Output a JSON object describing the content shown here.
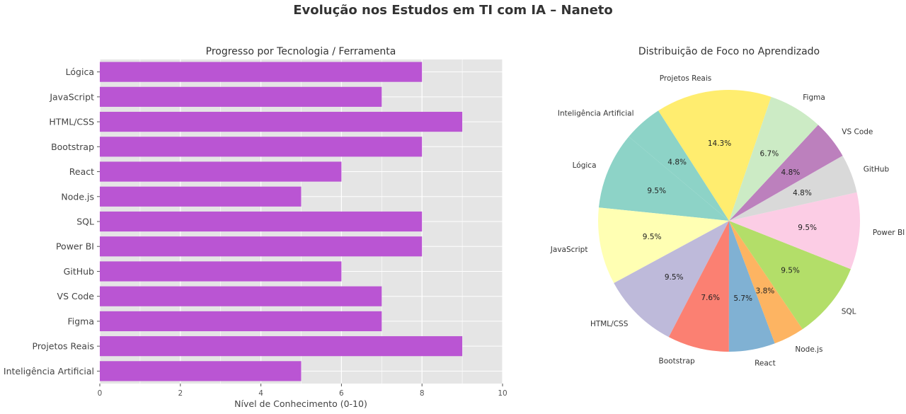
{
  "suptitle": "Evolução nos Estudos em TI com IA – Naneto",
  "chart_data": [
    {
      "type": "bar",
      "orientation": "horizontal",
      "title": "Progresso por Tecnologia / Ferramenta",
      "xlabel": "Nível de Conhecimento (0-10)",
      "ylabel": "",
      "categories": [
        "Lógica",
        "JavaScript",
        "HTML/CSS",
        "Bootstrap",
        "React",
        "Node.js",
        "SQL",
        "Power BI",
        "GitHub",
        "VS Code",
        "Figma",
        "Projetos Reais",
        "Inteligência Artificial"
      ],
      "values": [
        8,
        7,
        9,
        8,
        6,
        5,
        8,
        8,
        6,
        7,
        7,
        9,
        5
      ],
      "xlim": [
        0,
        10
      ],
      "xticks": [
        0,
        2,
        4,
        6,
        8,
        10
      ],
      "bar_color": "#BA55D3",
      "background": "#E5E5E5",
      "grid": true
    },
    {
      "type": "pie",
      "title": "Distribuição de Foco no Aprendizado",
      "start_angle": 140,
      "labels": [
        "Lógica",
        "JavaScript",
        "HTML/CSS",
        "Bootstrap",
        "React",
        "Node.js",
        "SQL",
        "Power BI",
        "GitHub",
        "VS Code",
        "Figma",
        "Projetos Reais",
        "Inteligência Artificial"
      ],
      "values": [
        9.5,
        9.5,
        9.5,
        7.6,
        5.7,
        3.8,
        9.5,
        9.5,
        4.8,
        4.8,
        6.7,
        14.3,
        4.8
      ],
      "pct_labels": [
        "9.5%",
        "9.5%",
        "9.5%",
        "7.6%",
        "5.7%",
        "3.8%",
        "9.5%",
        "9.5%",
        "4.8%",
        "4.8%",
        "6.7%",
        "14.3%",
        "4.8%"
      ],
      "colors": [
        "#8DD3C7",
        "#FFFFB3",
        "#BEBADA",
        "#FB8072",
        "#80B1D3",
        "#FDB462",
        "#B3DE69",
        "#FCCDE5",
        "#D9D9D9",
        "#BC80BD",
        "#CCEBC5",
        "#FFED6F",
        "#8DD3C7"
      ]
    }
  ]
}
